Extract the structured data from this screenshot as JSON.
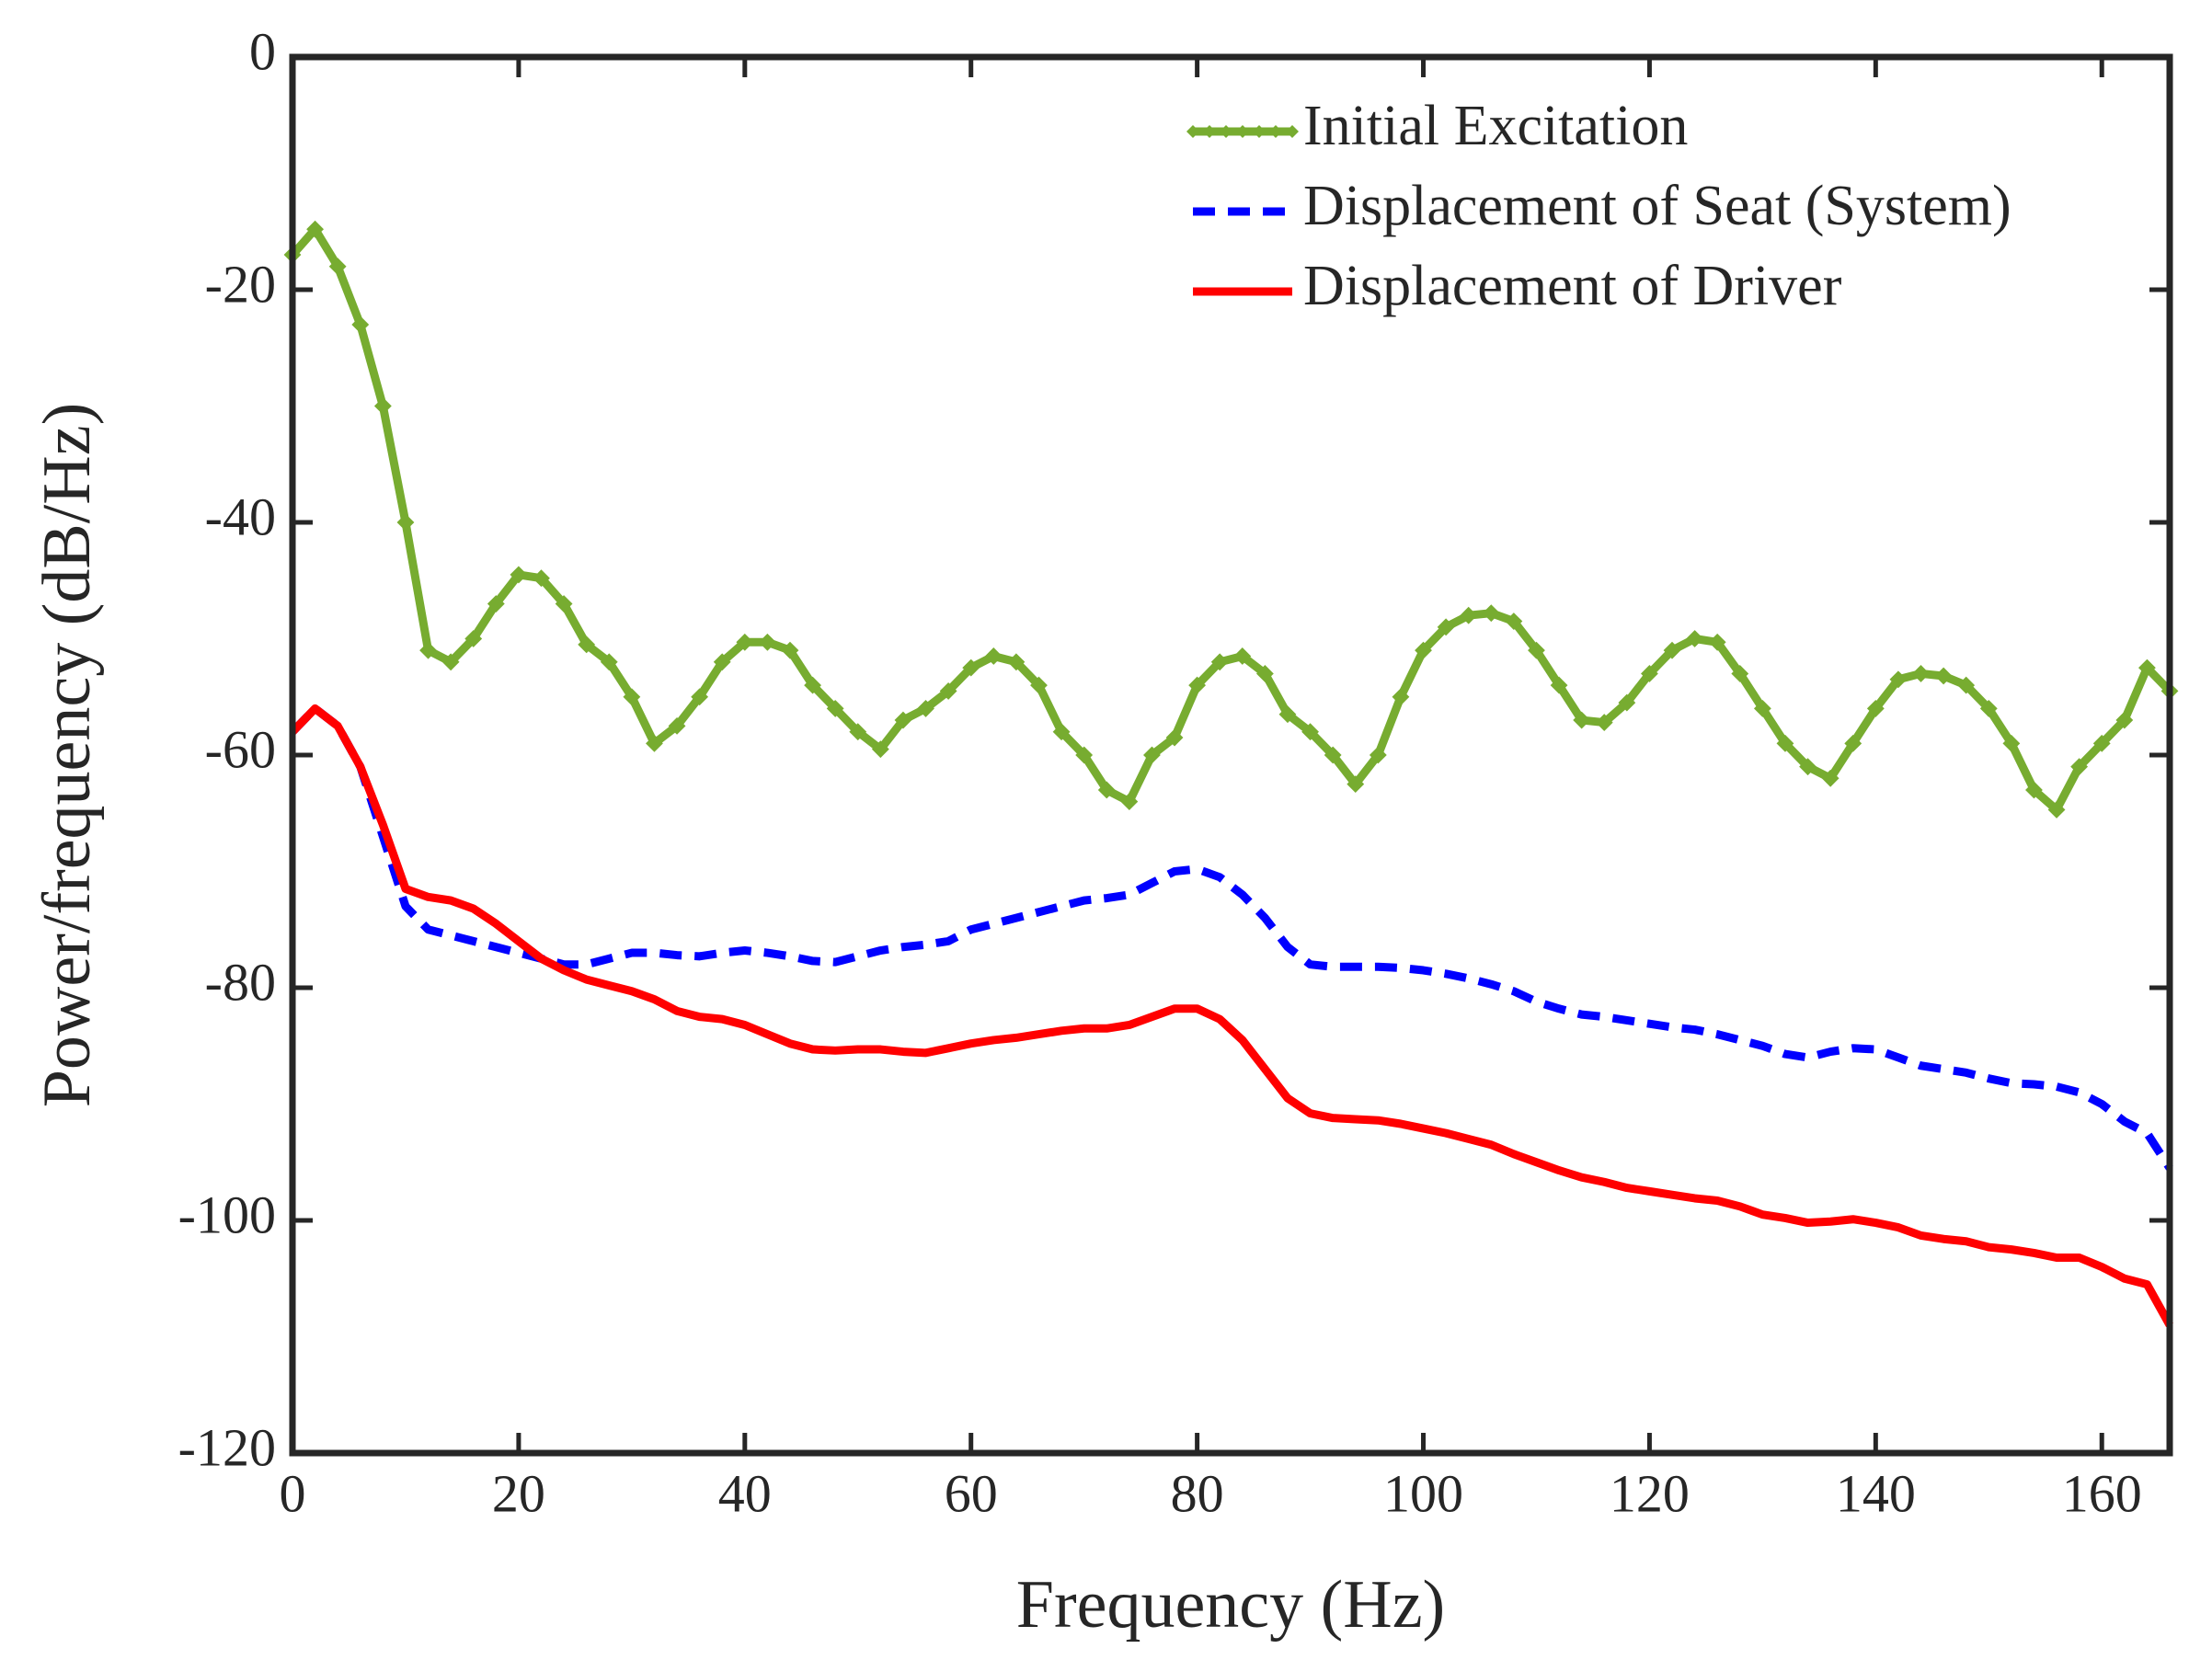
{
  "chart_data": {
    "type": "line",
    "xlabel": "Frequency (Hz)",
    "ylabel": "Power/frequency (dB/Hz)",
    "x": [
      0,
      2,
      4,
      6,
      8,
      10,
      12,
      14,
      16,
      18,
      20,
      22,
      24,
      26,
      28,
      30,
      32,
      34,
      36,
      38,
      40,
      42,
      44,
      46,
      48,
      50,
      52,
      54,
      56,
      58,
      60,
      62,
      64,
      66,
      68,
      70,
      72,
      74,
      76,
      78,
      80,
      82,
      84,
      86,
      88,
      90,
      92,
      94,
      96,
      98,
      100,
      102,
      104,
      106,
      108,
      110,
      112,
      114,
      116,
      118,
      120,
      122,
      124,
      126,
      128,
      130,
      132,
      134,
      136,
      138,
      140,
      142,
      144,
      146,
      148,
      150,
      152,
      154,
      156,
      158,
      160,
      162,
      164,
      166
    ],
    "series": [
      {
        "name": "Initial Excitation",
        "color": "#77ac30",
        "line_style": "solid",
        "marker": "diamond",
        "values": [
          -17,
          -14.8,
          -18,
          -23,
          -30,
          -40,
          -51,
          -52,
          -50,
          -47,
          -44.5,
          -44.8,
          -47,
          -50.5,
          -52,
          -55,
          -59,
          -57.5,
          -55,
          -52,
          -50.3,
          -50.3,
          -51,
          -54,
          -56,
          -58,
          -59.5,
          -57,
          -56,
          -54.5,
          -52.5,
          -51.5,
          -52,
          -54,
          -58,
          -60,
          -63,
          -64,
          -60,
          -58.5,
          -54,
          -52,
          -51.5,
          -53,
          -56.5,
          -58,
          -60,
          -62.5,
          -60,
          -55,
          -51,
          -49,
          -48,
          -47.8,
          -48.5,
          -51,
          -54,
          -57,
          -57.2,
          -55.5,
          -53,
          -51,
          -50,
          -50.3,
          -53,
          -56,
          -59,
          -61,
          -62,
          -59,
          -56,
          -53.5,
          -53,
          -53.2,
          -54,
          -56,
          -59,
          -63,
          -64.7,
          -61,
          -59,
          -57,
          -52.5,
          -54.5
        ]
      },
      {
        "name": "Displacement of Seat (System)",
        "color": "#0000ff",
        "line_style": "dashed",
        "marker": "none",
        "values": [
          -58,
          -56,
          -57.5,
          -61,
          -67,
          -73,
          -75,
          -75.5,
          -76,
          -76.5,
          -77,
          -77.5,
          -78,
          -78,
          -77.5,
          -77,
          -77,
          -77.2,
          -77.3,
          -77,
          -76.8,
          -77,
          -77.3,
          -77.7,
          -77.8,
          -77.3,
          -76.8,
          -76.5,
          -76.3,
          -76,
          -75,
          -74.5,
          -74,
          -73.5,
          -73,
          -72.5,
          -72.3,
          -72,
          -71,
          -70,
          -69.8,
          -70.5,
          -72,
          -74,
          -76.5,
          -78,
          -78.2,
          -78.2,
          -78.2,
          -78.3,
          -78.5,
          -78.8,
          -79.2,
          -79.7,
          -80.3,
          -81.2,
          -81.8,
          -82.3,
          -82.5,
          -82.8,
          -83.1,
          -83.4,
          -83.6,
          -84,
          -84.5,
          -85,
          -85.7,
          -86,
          -85.5,
          -85.2,
          -85.3,
          -86,
          -86.7,
          -87,
          -87.3,
          -87.8,
          -88.2,
          -88.3,
          -88.5,
          -89,
          -90,
          -91.5,
          -92.5,
          -95.5
        ]
      },
      {
        "name": "Displacement of Driver",
        "color": "#ff0000",
        "line_style": "solid",
        "marker": "none",
        "values": [
          -58,
          -56,
          -57.5,
          -61,
          -66,
          -71.5,
          -72.2,
          -72.5,
          -73.2,
          -74.5,
          -76,
          -77.5,
          -78.5,
          -79.3,
          -79.8,
          -80.3,
          -81,
          -82,
          -82.5,
          -82.7,
          -83.2,
          -84,
          -84.8,
          -85.3,
          -85.4,
          -85.3,
          -85.3,
          -85.5,
          -85.6,
          -85.2,
          -84.8,
          -84.5,
          -84.3,
          -84,
          -83.7,
          -83.5,
          -83.5,
          -83.2,
          -82.5,
          -81.8,
          -81.8,
          -82.7,
          -84.5,
          -87,
          -89.5,
          -90.8,
          -91.2,
          -91.3,
          -91.4,
          -91.7,
          -92.1,
          -92.5,
          -93,
          -93.5,
          -94.3,
          -95,
          -95.7,
          -96.3,
          -96.7,
          -97.2,
          -97.5,
          -97.8,
          -98.1,
          -98.3,
          -98.8,
          -99.5,
          -99.8,
          -100.2,
          -100.1,
          -99.9,
          -100.2,
          -100.6,
          -101.3,
          -101.6,
          -101.8,
          -102.3,
          -102.5,
          -102.8,
          -103.2,
          -103.2,
          -104,
          -105,
          -105.5,
          -109
        ]
      }
    ],
    "xlim": [
      0,
      166
    ],
    "xticks": [
      0,
      20,
      40,
      60,
      80,
      100,
      120,
      140,
      160
    ],
    "ylim": [
      -120,
      0
    ],
    "yticks": [
      -120,
      -100,
      -80,
      -60,
      -40,
      -20,
      0
    ],
    "grid": false,
    "legend": "upper right"
  }
}
